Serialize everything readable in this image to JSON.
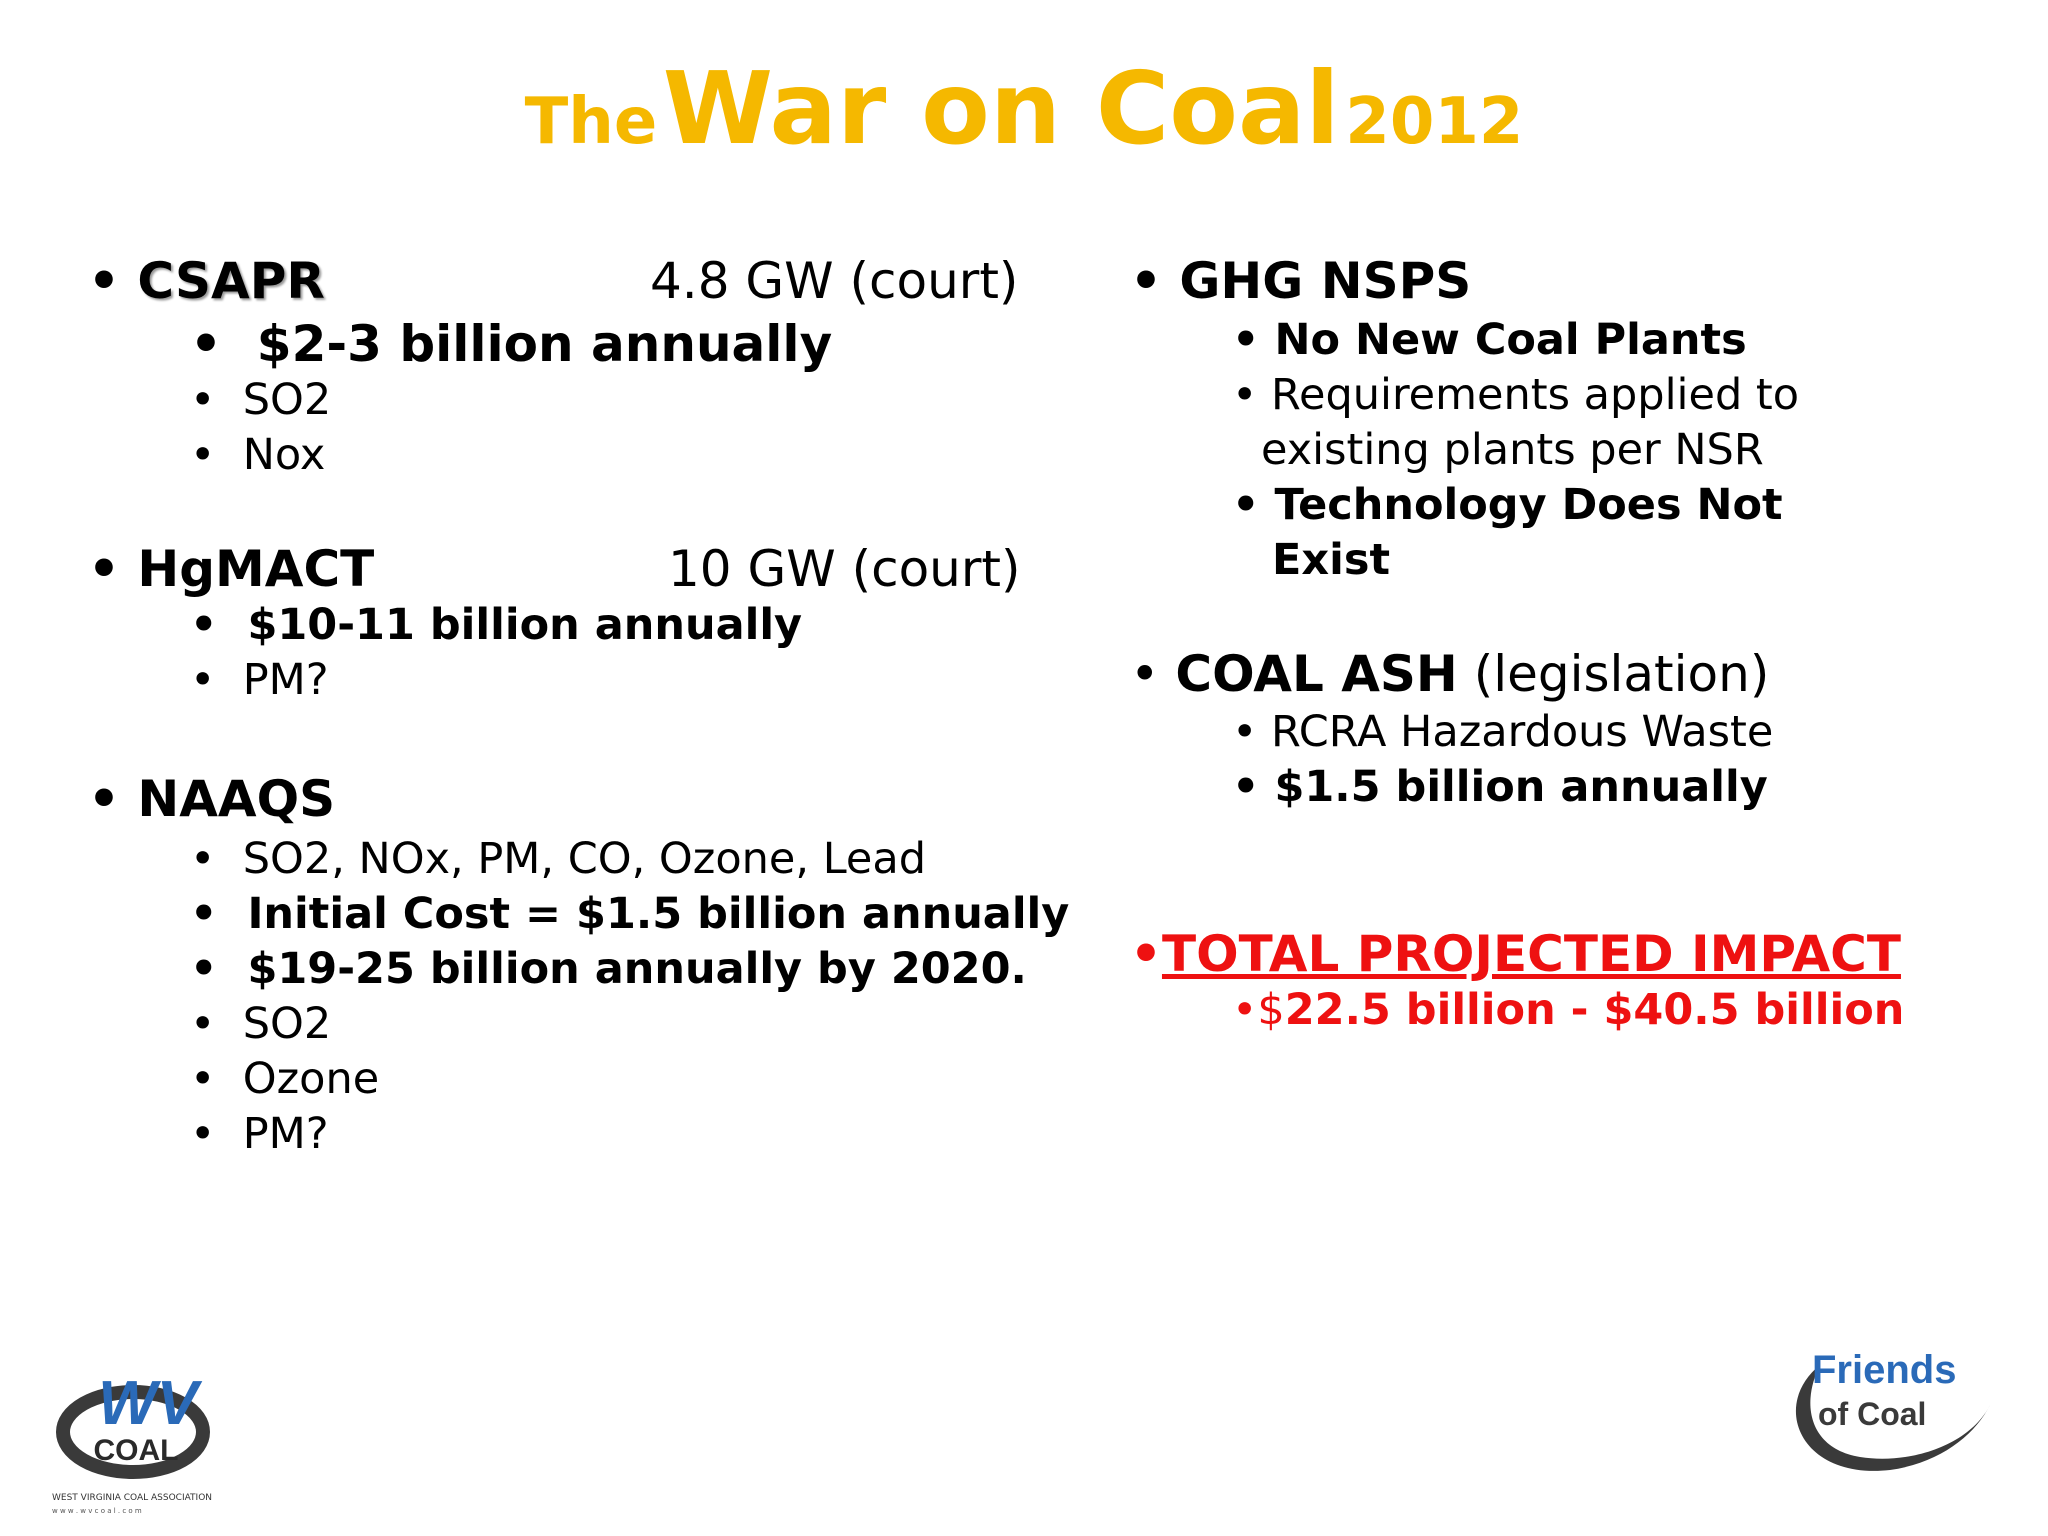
{
  "title": {
    "the": "The",
    "war_on_coal": "War on Coal",
    "year": "2012"
  },
  "left": {
    "csapr": {
      "heading": "CSAPR",
      "capacity": "4.8 GW (court)",
      "items": [
        "$2-3 billion annually",
        "SO2",
        "Nox"
      ]
    },
    "hgmact": {
      "heading": "HgMACT",
      "capacity": "10 GW (court)",
      "items": [
        "$10-11 billion annually",
        "PM?"
      ]
    },
    "naaqs": {
      "heading": "NAAQS",
      "items": [
        "SO2, NOx, PM, CO, Ozone, Lead",
        "Initial Cost = $1.5 billion annually",
        "$19-25 billion annually by 2020.",
        "SO2",
        "Ozone",
        "PM?"
      ]
    }
  },
  "right": {
    "ghg": {
      "heading": "GHG NSPS",
      "items": [
        "No New Coal Plants",
        "Requirements applied to",
        "existing plants per NSR",
        "Technology Does Not",
        "Exist"
      ]
    },
    "coal_ash": {
      "heading": "COAL ASH",
      "note": "(legislation)",
      "items": [
        "RCRA Hazardous Waste",
        "$1.5 billion annually"
      ]
    },
    "total": {
      "heading": "TOTAL PROJECTED IMPACT",
      "dollar": "$",
      "value": "22.5 billion - $40.5 billion"
    }
  },
  "bullet": "•",
  "logos": {
    "wv": {
      "main": "WV",
      "sub": "COAL",
      "assoc": "WEST VIRGINIA COAL ASSOCIATION",
      "web": "w w w . w v c o a l . c o m"
    },
    "foc": {
      "line1": "Friends",
      "line2": "of Coal"
    }
  },
  "colors": {
    "title": "#f5b800",
    "total": "#ee1111",
    "logo_blue": "#2a6ab8",
    "logo_dark": "#3a3a3a"
  }
}
